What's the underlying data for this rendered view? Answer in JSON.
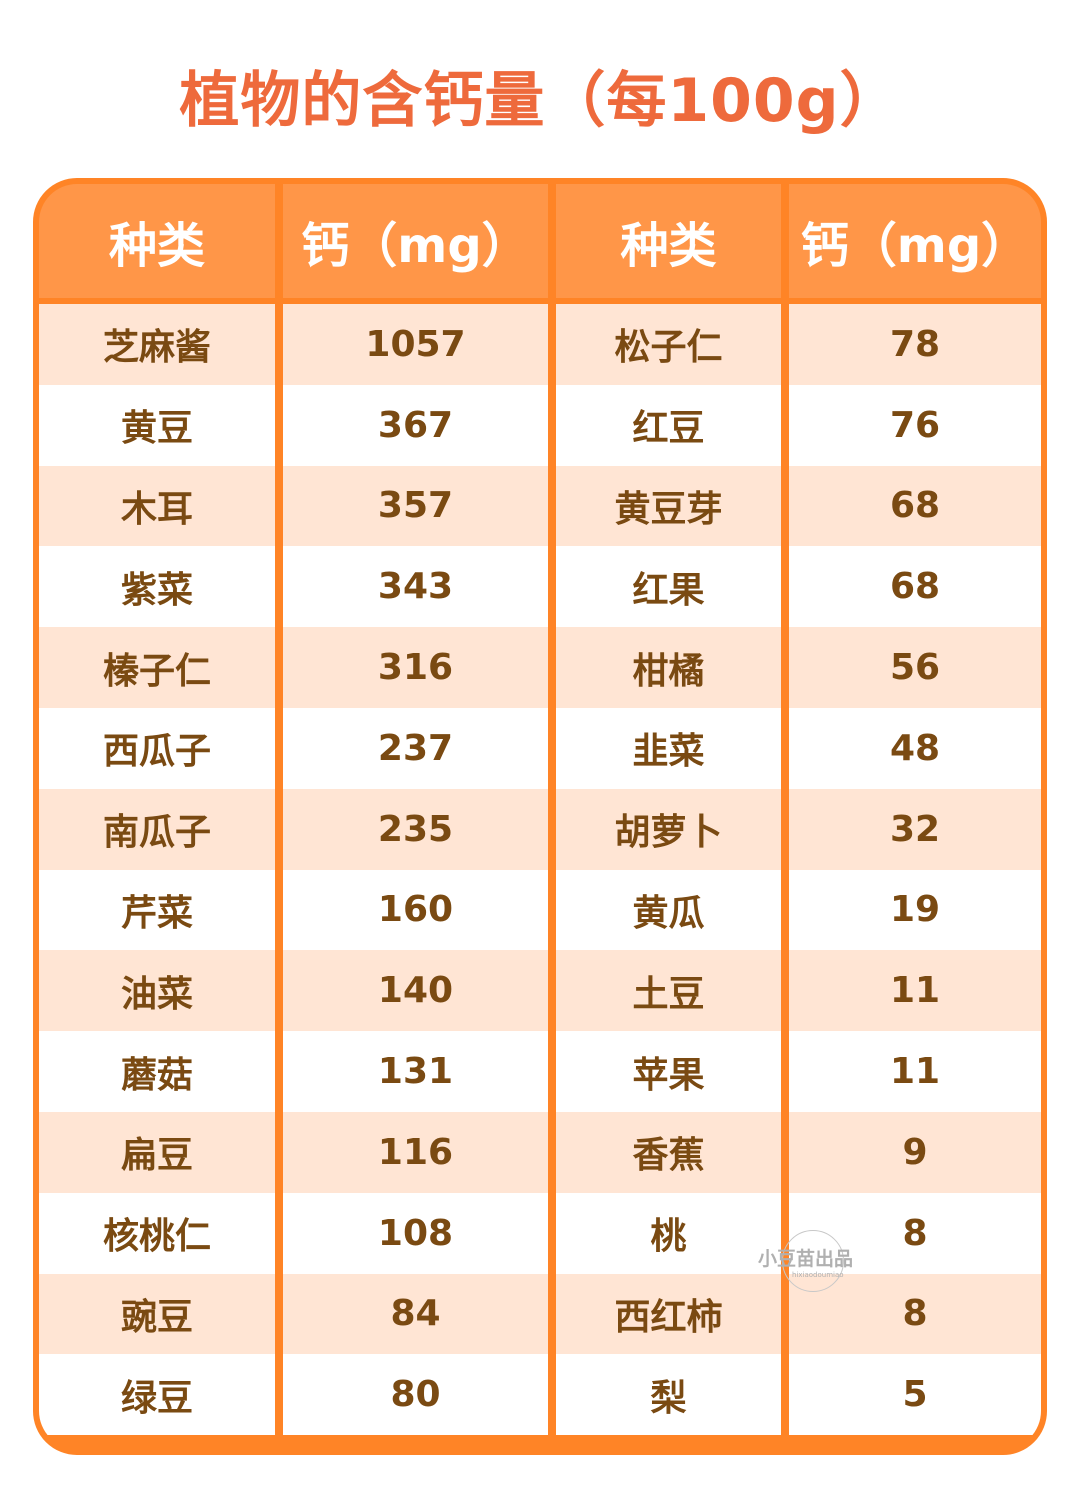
{
  "title": "植物的含钙量（每100g）",
  "headers": [
    "种类",
    "钙（mg）",
    "种类",
    "钙（mg）"
  ],
  "left_rows": [
    [
      "芝麻酱",
      "1057"
    ],
    [
      "黄豆",
      "367"
    ],
    [
      "木耳",
      "357"
    ],
    [
      "紫菜",
      "343"
    ],
    [
      "榛子仁",
      "316"
    ],
    [
      "西瓜子",
      "237"
    ],
    [
      "南瓜子",
      "235"
    ],
    [
      "芹菜",
      "160"
    ],
    [
      "油菜",
      "140"
    ],
    [
      "蘑菇",
      "131"
    ],
    [
      "扁豆",
      "116"
    ],
    [
      "核桃仁",
      "108"
    ],
    [
      "豌豆",
      "84"
    ],
    [
      "绿豆",
      "80"
    ]
  ],
  "right_rows": [
    [
      "松子仁",
      "78"
    ],
    [
      "红豆",
      "76"
    ],
    [
      "黄豆芽",
      "68"
    ],
    [
      "红果",
      "68"
    ],
    [
      "柑橘",
      "56"
    ],
    [
      "韭菜",
      "48"
    ],
    [
      "胡萝卜",
      "32"
    ],
    [
      "黄瓜",
      "19"
    ],
    [
      "土豆",
      "11"
    ],
    [
      "苹果",
      "11"
    ],
    [
      "香蕉",
      "9"
    ],
    [
      "桃",
      "8"
    ],
    [
      "西红柿",
      "8"
    ],
    [
      "梨",
      "5"
    ]
  ],
  "watermark": {
    "text": "小豆苗出品",
    "sub": "hixiaodoumiao"
  },
  "colors": {
    "title": "#EE6A3C",
    "border": "#FF8426",
    "header_bg": "#FF9648",
    "stripe": "#FFE5D4",
    "text": "#7A4A12"
  }
}
